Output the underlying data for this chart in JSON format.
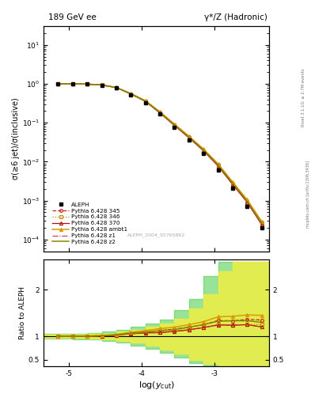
{
  "title_left": "189 GeV ee",
  "title_right": "γ*/Z (Hadronic)",
  "ylabel_main": "σ(≥6 jet)/σ(inclusive)",
  "ylabel_ratio": "Ratio to ALEPH",
  "xlabel": "log(y_{cut})",
  "right_label_top": "Rivet 3.1.10; ≥ 2.7M events",
  "right_label_bot": "mcplots.cern.ch [arXiv:1306.3436]",
  "watermark": "ALEPH_2004_S5765862",
  "xlim": [
    -5.35,
    -2.25
  ],
  "ylim_main": [
    5e-05,
    30
  ],
  "ylim_ratio": [
    0.35,
    2.65
  ],
  "ratio_yticks": [
    0.5,
    1.0,
    2.0
  ],
  "data_x": [
    -5.15,
    -4.95,
    -4.75,
    -4.55,
    -4.35,
    -4.15,
    -3.95,
    -3.75,
    -3.55,
    -3.35,
    -3.15,
    -2.95,
    -2.75,
    -2.55,
    -2.35
  ],
  "data_y": [
    1.0,
    1.0,
    0.98,
    0.92,
    0.78,
    0.52,
    0.33,
    0.165,
    0.077,
    0.036,
    0.016,
    0.0062,
    0.0021,
    0.00072,
    0.0002
  ],
  "mc_x": [
    -5.15,
    -4.95,
    -4.75,
    -4.55,
    -4.35,
    -4.15,
    -3.95,
    -3.75,
    -3.55,
    -3.35,
    -3.15,
    -2.95,
    -2.75,
    -2.55,
    -2.35
  ],
  "mc345_y": [
    1.0,
    1.0,
    0.98,
    0.93,
    0.8,
    0.555,
    0.36,
    0.185,
    0.089,
    0.043,
    0.02,
    0.0083,
    0.0028,
    0.00098,
    0.00027
  ],
  "mc346_y": [
    1.0,
    1.0,
    0.98,
    0.93,
    0.8,
    0.548,
    0.354,
    0.18,
    0.086,
    0.041,
    0.019,
    0.0078,
    0.0026,
    0.0009,
    0.00025
  ],
  "mc370_y": [
    1.0,
    1.0,
    0.98,
    0.93,
    0.8,
    0.548,
    0.354,
    0.178,
    0.085,
    0.041,
    0.019,
    0.0077,
    0.0026,
    0.0009,
    0.00024
  ],
  "mc_ambt1_y": [
    1.0,
    1.0,
    0.985,
    0.935,
    0.81,
    0.565,
    0.37,
    0.192,
    0.092,
    0.045,
    0.021,
    0.0088,
    0.003,
    0.00105,
    0.00029
  ],
  "mc_z1_y": [
    1.0,
    1.0,
    0.98,
    0.93,
    0.8,
    0.548,
    0.354,
    0.178,
    0.085,
    0.041,
    0.019,
    0.0077,
    0.0026,
    0.0009,
    0.00024
  ],
  "mc_z2_y": [
    1.0,
    1.0,
    0.985,
    0.932,
    0.805,
    0.555,
    0.36,
    0.185,
    0.088,
    0.043,
    0.02,
    0.0082,
    0.0028,
    0.00096,
    0.00026
  ],
  "ratio345": [
    1.0,
    1.0,
    1.0,
    1.01,
    1.026,
    1.067,
    1.09,
    1.12,
    1.156,
    1.194,
    1.25,
    1.339,
    1.333,
    1.361,
    1.35
  ],
  "ratio346": [
    1.0,
    1.0,
    1.0,
    1.01,
    1.026,
    1.054,
    1.073,
    1.09,
    1.117,
    1.139,
    1.188,
    1.258,
    1.238,
    1.25,
    1.25
  ],
  "ratio370": [
    1.0,
    1.0,
    1.0,
    1.01,
    1.026,
    1.054,
    1.073,
    1.079,
    1.104,
    1.139,
    1.188,
    1.242,
    1.238,
    1.25,
    1.2
  ],
  "ratio_ambt1": [
    1.0,
    1.0,
    1.005,
    1.016,
    1.038,
    1.087,
    1.121,
    1.164,
    1.195,
    1.25,
    1.313,
    1.419,
    1.429,
    1.458,
    1.45
  ],
  "ratio_z1": [
    1.0,
    1.0,
    1.0,
    1.01,
    1.026,
    1.054,
    1.073,
    1.079,
    1.104,
    1.139,
    1.188,
    1.242,
    1.238,
    1.25,
    1.2
  ],
  "ratio_z2": [
    1.0,
    1.0,
    1.005,
    1.013,
    1.032,
    1.067,
    1.091,
    1.121,
    1.143,
    1.194,
    1.25,
    1.323,
    1.333,
    1.333,
    1.3
  ],
  "green_band_x": [
    -5.35,
    -5.15,
    -4.95,
    -4.75,
    -4.55,
    -4.35,
    -4.15,
    -3.95,
    -3.75,
    -3.55,
    -3.35,
    -3.15,
    -2.95,
    -2.75,
    -2.55,
    -2.35,
    -2.25
  ],
  "green_band_lo": [
    0.95,
    0.95,
    0.95,
    0.94,
    0.93,
    0.9,
    0.86,
    0.8,
    0.73,
    0.64,
    0.54,
    0.43,
    0.35,
    0.35,
    0.35,
    0.35,
    0.35
  ],
  "green_band_hi": [
    1.05,
    1.05,
    1.05,
    1.06,
    1.07,
    1.1,
    1.14,
    1.2,
    1.27,
    1.36,
    1.56,
    1.8,
    2.3,
    2.6,
    2.6,
    2.6,
    2.6
  ],
  "yellow_band_x": [
    -5.35,
    -5.15,
    -4.95,
    -4.75,
    -4.55,
    -4.35,
    -4.15,
    -3.95,
    -3.75,
    -3.55,
    -3.35,
    -3.15,
    -2.95,
    -2.75,
    -2.55,
    -2.35,
    -2.25
  ],
  "yellow_band_lo": [
    0.97,
    0.97,
    0.97,
    0.965,
    0.955,
    0.94,
    0.9,
    0.86,
    0.8,
    0.72,
    0.62,
    0.5,
    0.4,
    0.37,
    0.36,
    0.35,
    0.35
  ],
  "yellow_band_hi": [
    1.03,
    1.03,
    1.03,
    1.035,
    1.045,
    1.06,
    1.1,
    1.14,
    1.2,
    1.28,
    1.38,
    1.6,
    1.9,
    2.4,
    2.6,
    2.6,
    2.6
  ],
  "color_345": "#cc2222",
  "color_346": "#cc8800",
  "color_370": "#aa1111",
  "color_ambt1": "#dd9900",
  "color_z1": "#cc3333",
  "color_z2": "#888800",
  "color_data": "black",
  "green_band_color": "#44cc44",
  "yellow_band_color": "#eeee44"
}
